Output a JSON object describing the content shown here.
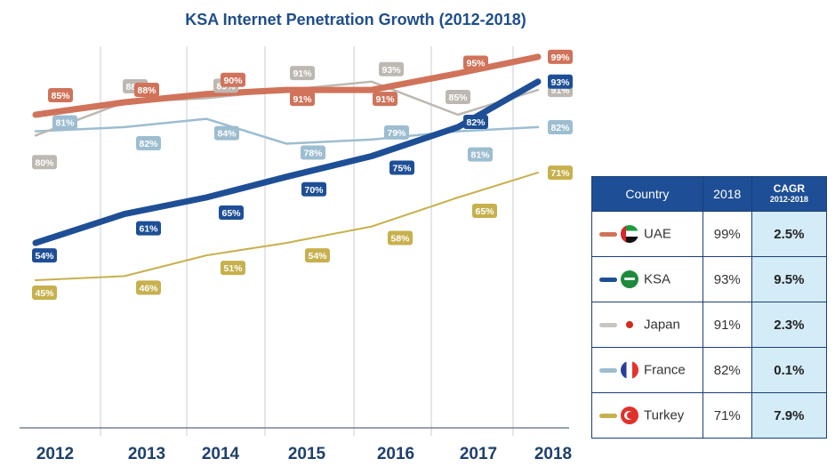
{
  "chart_data": {
    "type": "line",
    "title": "KSA Internet Penetration Growth (2012-2018)",
    "xlabel": "",
    "ylabel": "",
    "x": [
      "2012",
      "2013",
      "2014",
      "2015",
      "2016",
      "2017",
      "2018"
    ],
    "grid": "vertical",
    "series": [
      {
        "name": "UAE",
        "color": "#d0735a",
        "values": [
          85,
          88,
          90,
          91,
          91,
          95,
          99
        ],
        "labels": [
          "85%",
          "88%",
          "90%",
          "91%",
          "91%",
          "95%",
          "99%"
        ]
      },
      {
        "name": "KSA",
        "color": "#1e4f96",
        "values": [
          54,
          61,
          65,
          70,
          75,
          82,
          93
        ],
        "labels": [
          "54%",
          "61%",
          "65%",
          "70%",
          "75%",
          "82%",
          "93%"
        ]
      },
      {
        "name": "Japan",
        "color": "#bdb8b2",
        "values": [
          80,
          88,
          89,
          91,
          93,
          85,
          91
        ],
        "labels": [
          "80%",
          "88%",
          "89%",
          "91%",
          "93%",
          "85%",
          "91%"
        ]
      },
      {
        "name": "France",
        "color": "#9dbdd0",
        "values": [
          81,
          82,
          84,
          78,
          79,
          81,
          82
        ],
        "labels": [
          "81%",
          "82%",
          "84%",
          "78%",
          "79%",
          "81%",
          "82%"
        ]
      },
      {
        "name": "Turkey",
        "color": "#c7b04d",
        "values": [
          45,
          46,
          51,
          54,
          58,
          65,
          71
        ],
        "labels": [
          "45%",
          "46%",
          "51%",
          "54%",
          "58%",
          "65%",
          "71%"
        ]
      }
    ]
  },
  "table": {
    "headers": {
      "country": "Country",
      "year": "2018",
      "cagr": "CAGR",
      "cagr_sub": "2012-2018"
    },
    "rows": [
      {
        "country": "UAE",
        "flag": "uae-flag",
        "value_2018": "99%",
        "cagr": "2.5%"
      },
      {
        "country": "KSA",
        "flag": "ksa-flag",
        "value_2018": "93%",
        "cagr": "9.5%"
      },
      {
        "country": "Japan",
        "flag": "japan-flag",
        "value_2018": "91%",
        "cagr": "2.3%"
      },
      {
        "country": "France",
        "flag": "france-flag",
        "value_2018": "82%",
        "cagr": "0.1%"
      },
      {
        "country": "Turkey",
        "flag": "turkey-flag",
        "value_2018": "71%",
        "cagr": "7.9%"
      }
    ]
  }
}
